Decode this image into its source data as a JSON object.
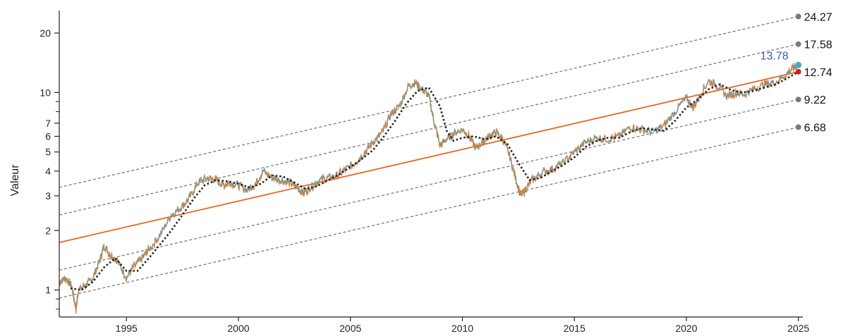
{
  "chart_data": {
    "type": "line",
    "ylabel": "Valeur",
    "xlabel": "",
    "y_scale": "log",
    "xlim": [
      1992.0,
      2025.2
    ],
    "ylim": [
      0.73,
      26
    ],
    "x_ticks": [
      {
        "value": 1995,
        "label": "1995"
      },
      {
        "value": 2000,
        "label": "2000"
      },
      {
        "value": 2005,
        "label": "2005"
      },
      {
        "value": 2010,
        "label": "2010"
      },
      {
        "value": 2015,
        "label": "2015"
      },
      {
        "value": 2020,
        "label": "2020"
      },
      {
        "value": 2025,
        "label": "2025"
      }
    ],
    "y_ticks": [
      {
        "value": 1,
        "label": "1"
      },
      {
        "value": 2,
        "label": "2"
      },
      {
        "value": 3,
        "label": "3"
      },
      {
        "value": 4,
        "label": "4"
      },
      {
        "value": 5,
        "label": "5"
      },
      {
        "value": 6,
        "label": "6"
      },
      {
        "value": 7,
        "label": "7"
      },
      {
        "value": 10,
        "label": "10"
      },
      {
        "value": 20,
        "label": "20"
      }
    ],
    "y_minor_ticks": [
      0.8,
      0.9,
      8,
      9
    ],
    "series": [
      {
        "role": "price",
        "color": "#4aa8cf",
        "points": [
          [
            1992.0,
            1.1
          ],
          [
            1992.3,
            1.15
          ],
          [
            1992.55,
            1.05
          ],
          [
            1992.75,
            0.8
          ],
          [
            1992.85,
            1.0
          ],
          [
            1993.2,
            1.06
          ],
          [
            1993.5,
            1.15
          ],
          [
            1993.8,
            1.4
          ],
          [
            1994.0,
            1.68
          ],
          [
            1994.3,
            1.5
          ],
          [
            1994.6,
            1.4
          ],
          [
            1995.0,
            1.15
          ],
          [
            1995.3,
            1.3
          ],
          [
            1995.7,
            1.45
          ],
          [
            1996.0,
            1.6
          ],
          [
            1996.5,
            1.9
          ],
          [
            1997.0,
            2.4
          ],
          [
            1997.4,
            2.6
          ],
          [
            1997.8,
            2.9
          ],
          [
            1998.2,
            3.5
          ],
          [
            1998.6,
            3.7
          ],
          [
            1999.0,
            3.6
          ],
          [
            1999.3,
            3.4
          ],
          [
            1999.6,
            3.5
          ],
          [
            2000.0,
            3.4
          ],
          [
            2000.4,
            3.2
          ],
          [
            2000.8,
            3.5
          ],
          [
            2001.1,
            4.0
          ],
          [
            2001.5,
            3.7
          ],
          [
            2001.9,
            3.6
          ],
          [
            2002.3,
            3.5
          ],
          [
            2002.6,
            3.3
          ],
          [
            2002.9,
            3.1
          ],
          [
            2003.2,
            3.3
          ],
          [
            2003.6,
            3.6
          ],
          [
            2004.0,
            3.7
          ],
          [
            2004.4,
            3.8
          ],
          [
            2004.8,
            4.1
          ],
          [
            2005.2,
            4.4
          ],
          [
            2005.6,
            4.9
          ],
          [
            2006.0,
            5.6
          ],
          [
            2006.4,
            6.2
          ],
          [
            2006.8,
            7.7
          ],
          [
            2007.2,
            8.6
          ],
          [
            2007.6,
            10.8
          ],
          [
            2007.9,
            11.2
          ],
          [
            2008.2,
            10.4
          ],
          [
            2008.5,
            9.6
          ],
          [
            2008.75,
            7.0
          ],
          [
            2009.0,
            5.4
          ],
          [
            2009.3,
            5.8
          ],
          [
            2009.6,
            6.2
          ],
          [
            2010.0,
            6.5
          ],
          [
            2010.3,
            6.0
          ],
          [
            2010.6,
            5.2
          ],
          [
            2010.9,
            5.6
          ],
          [
            2011.2,
            6.0
          ],
          [
            2011.5,
            6.3
          ],
          [
            2011.8,
            5.8
          ],
          [
            2012.1,
            4.8
          ],
          [
            2012.4,
            3.6
          ],
          [
            2012.6,
            3.0
          ],
          [
            2012.8,
            3.2
          ],
          [
            2013.1,
            3.6
          ],
          [
            2013.5,
            3.9
          ],
          [
            2014.0,
            4.1
          ],
          [
            2014.5,
            4.4
          ],
          [
            2015.0,
            5.0
          ],
          [
            2015.5,
            5.6
          ],
          [
            2016.0,
            5.9
          ],
          [
            2016.5,
            5.8
          ],
          [
            2017.0,
            6.0
          ],
          [
            2017.5,
            6.7
          ],
          [
            2018.0,
            6.5
          ],
          [
            2018.5,
            6.3
          ],
          [
            2019.0,
            6.8
          ],
          [
            2019.5,
            8.0
          ],
          [
            2020.0,
            9.4
          ],
          [
            2020.3,
            8.4
          ],
          [
            2020.6,
            9.6
          ],
          [
            2021.0,
            11.5
          ],
          [
            2021.4,
            10.8
          ],
          [
            2021.8,
            9.6
          ],
          [
            2022.2,
            10.0
          ],
          [
            2022.6,
            9.8
          ],
          [
            2023.0,
            10.4
          ],
          [
            2023.5,
            11.0
          ],
          [
            2024.0,
            11.3
          ],
          [
            2024.5,
            12.5
          ],
          [
            2024.8,
            13.4
          ],
          [
            2025.0,
            13.78
          ]
        ]
      },
      {
        "role": "moving-average",
        "color": "#222222",
        "dashed": true,
        "points": [
          [
            1992.5,
            1.02
          ],
          [
            1993.0,
            1.0
          ],
          [
            1993.5,
            1.1
          ],
          [
            1994.0,
            1.3
          ],
          [
            1994.5,
            1.45
          ],
          [
            1995.0,
            1.25
          ],
          [
            1995.5,
            1.25
          ],
          [
            1996.0,
            1.45
          ],
          [
            1996.5,
            1.7
          ],
          [
            1997.0,
            2.0
          ],
          [
            1997.5,
            2.4
          ],
          [
            1998.0,
            2.9
          ],
          [
            1998.5,
            3.4
          ],
          [
            1999.0,
            3.6
          ],
          [
            1999.5,
            3.55
          ],
          [
            2000.0,
            3.45
          ],
          [
            2000.5,
            3.3
          ],
          [
            2001.0,
            3.45
          ],
          [
            2001.5,
            3.8
          ],
          [
            2002.0,
            3.75
          ],
          [
            2002.5,
            3.5
          ],
          [
            2003.0,
            3.25
          ],
          [
            2003.5,
            3.35
          ],
          [
            2004.0,
            3.6
          ],
          [
            2004.5,
            3.85
          ],
          [
            2005.0,
            4.2
          ],
          [
            2005.5,
            4.6
          ],
          [
            2006.0,
            5.1
          ],
          [
            2006.5,
            6.0
          ],
          [
            2007.0,
            7.2
          ],
          [
            2007.5,
            8.8
          ],
          [
            2008.0,
            10.2
          ],
          [
            2008.5,
            10.6
          ],
          [
            2009.0,
            8.5
          ],
          [
            2009.3,
            6.4
          ],
          [
            2009.6,
            5.7
          ],
          [
            2010.0,
            5.9
          ],
          [
            2010.5,
            6.0
          ],
          [
            2011.0,
            5.8
          ],
          [
            2011.5,
            6.0
          ],
          [
            2012.0,
            5.5
          ],
          [
            2012.5,
            4.4
          ],
          [
            2013.0,
            3.6
          ],
          [
            2013.5,
            3.7
          ],
          [
            2014.0,
            4.0
          ],
          [
            2014.5,
            4.3
          ],
          [
            2015.0,
            4.7
          ],
          [
            2015.5,
            5.3
          ],
          [
            2016.0,
            5.7
          ],
          [
            2016.5,
            5.9
          ],
          [
            2017.0,
            5.9
          ],
          [
            2017.5,
            6.3
          ],
          [
            2018.0,
            6.6
          ],
          [
            2018.5,
            6.5
          ],
          [
            2019.0,
            6.4
          ],
          [
            2019.5,
            7.2
          ],
          [
            2020.0,
            8.4
          ],
          [
            2020.5,
            9.2
          ],
          [
            2021.0,
            10.4
          ],
          [
            2021.5,
            11.0
          ],
          [
            2022.0,
            10.3
          ],
          [
            2022.5,
            10.0
          ],
          [
            2023.0,
            10.2
          ],
          [
            2023.5,
            10.6
          ],
          [
            2024.0,
            11.0
          ],
          [
            2024.5,
            11.8
          ],
          [
            2025.0,
            12.74
          ]
        ]
      },
      {
        "role": "trend",
        "color": "#e8661f",
        "points": [
          [
            1992.0,
            1.74
          ],
          [
            2025.0,
            12.74
          ]
        ],
        "end_label": "12.74",
        "end_marker_color": "#d0202a"
      },
      {
        "role": "channel",
        "color": "#7a7a7a",
        "dashed": true,
        "points": [
          [
            1992.0,
            3.31
          ],
          [
            2025.0,
            24.27
          ]
        ],
        "end_label": "24.27"
      },
      {
        "role": "channel",
        "color": "#7a7a7a",
        "dashed": true,
        "points": [
          [
            1992.0,
            2.4
          ],
          [
            2025.0,
            17.58
          ]
        ],
        "end_label": "17.58"
      },
      {
        "role": "channel",
        "color": "#7a7a7a",
        "dashed": true,
        "points": [
          [
            1992.0,
            1.26
          ],
          [
            2025.0,
            9.22
          ]
        ],
        "end_label": "9.22"
      },
      {
        "role": "channel",
        "color": "#7a7a7a",
        "dashed": true,
        "points": [
          [
            1992.0,
            0.91
          ],
          [
            2025.0,
            6.68
          ]
        ],
        "end_label": "6.68"
      }
    ],
    "current_value": {
      "x": 2025.0,
      "y": 13.78,
      "label": "13.78",
      "color": "#4aa8cf",
      "label_color": "#3a5ea8"
    },
    "noise_overlay_color": "#e07b2a",
    "grid": false
  }
}
